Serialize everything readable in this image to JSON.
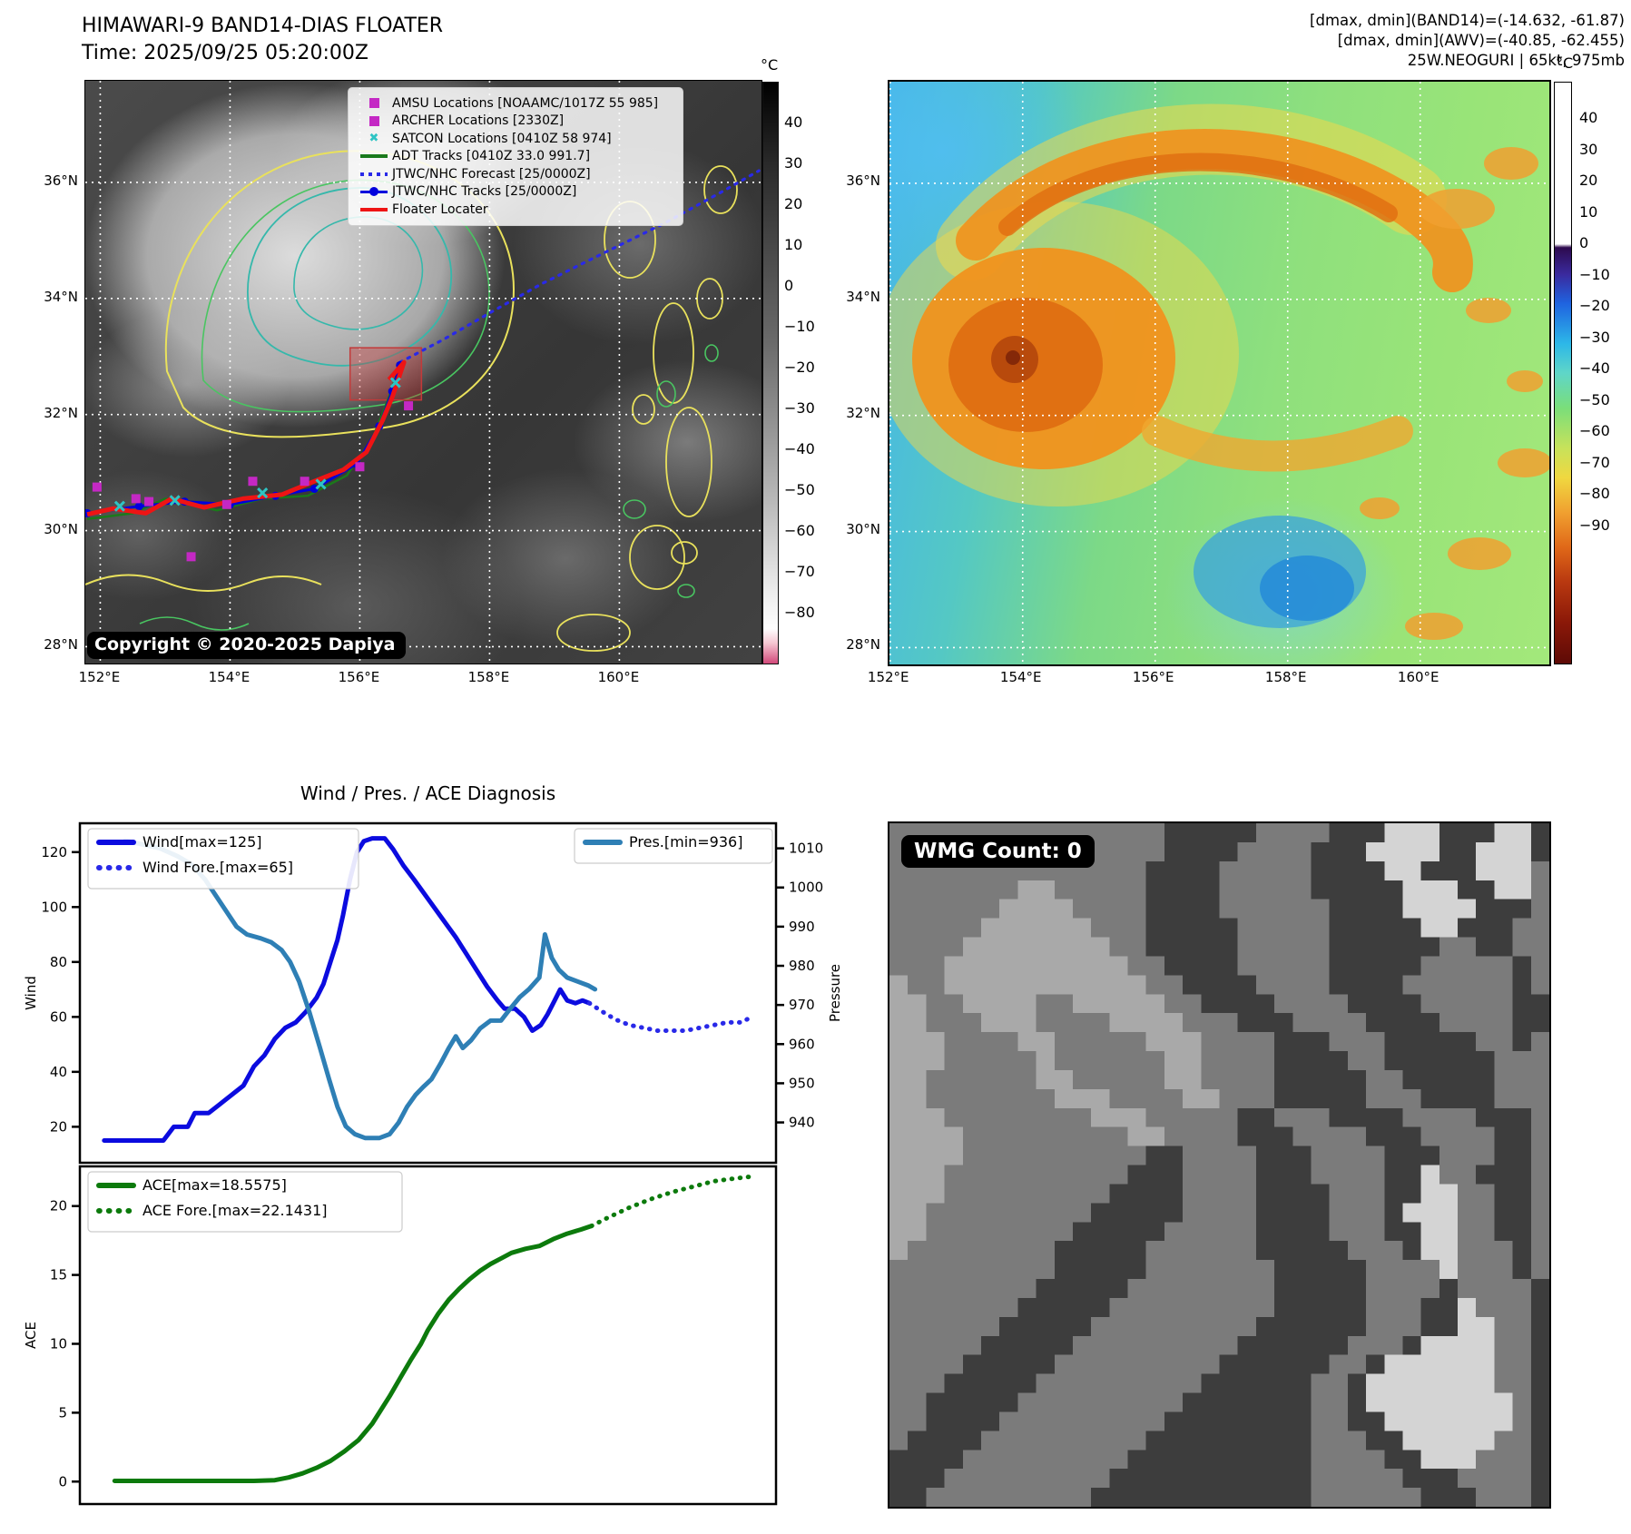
{
  "panel_band14": {
    "title": "HIMAWARI-9 BAND14-DIAS FLOATER",
    "subtitle": "Time: 2025/09/25 05:20:00Z",
    "copyright": "Copyright © 2020-2025 Dapiya",
    "legend": [
      {
        "label": "AMSU Locations [NOAAMC/1017Z 55 985]",
        "marker": "square",
        "color": "#c428c4"
      },
      {
        "label": "ARCHER Locations [2330Z]",
        "marker": "square",
        "color": "#c428c4"
      },
      {
        "label": "SATCON Locations [0410Z 58 974]",
        "marker": "x",
        "color": "#2ec4c4"
      },
      {
        "label": "ADT Tracks [0410Z 33.0 991.7]",
        "marker": "line",
        "color": "#1a7a1a"
      },
      {
        "label": "JTWC/NHC Forecast [25/0000Z]",
        "marker": "dotted",
        "color": "#2929e8"
      },
      {
        "label": "JTWC/NHC Tracks [25/0000Z]",
        "marker": "linedot",
        "color": "#0000dd"
      },
      {
        "label": "Floater Locater",
        "marker": "line",
        "color": "#ee1414"
      }
    ],
    "lat_labels": [
      "36°N",
      "34°N",
      "32°N",
      "30°N",
      "28°N"
    ],
    "lon_labels": [
      "152°E",
      "154°E",
      "156°E",
      "158°E",
      "160°E"
    ],
    "colorbar": {
      "unit": "°C",
      "ticks": [
        40,
        30,
        20,
        10,
        0,
        -10,
        -20,
        -30,
        -40,
        -50,
        -60,
        -70,
        -80
      ]
    },
    "tracks": {
      "jtwc": [
        [
          151.8,
          30.3
        ],
        [
          152.6,
          30.42
        ],
        [
          153.3,
          30.5
        ],
        [
          154.0,
          30.45
        ],
        [
          154.7,
          30.6
        ],
        [
          155.3,
          30.72
        ],
        [
          155.95,
          31.15
        ],
        [
          156.3,
          31.8
        ],
        [
          156.5,
          32.4
        ],
        [
          156.62,
          32.85
        ]
      ],
      "forecast": [
        [
          156.62,
          32.9
        ],
        [
          157.3,
          33.3
        ],
        [
          158.0,
          33.75
        ],
        [
          158.8,
          34.25
        ],
        [
          159.7,
          34.75
        ],
        [
          160.7,
          35.3
        ],
        [
          161.6,
          35.85
        ],
        [
          162.15,
          36.2
        ]
      ],
      "adt": [
        [
          151.8,
          30.2
        ],
        [
          152.5,
          30.3
        ],
        [
          153.0,
          30.55
        ],
        [
          153.8,
          30.35
        ],
        [
          154.5,
          30.55
        ],
        [
          155.2,
          30.6
        ],
        [
          155.8,
          30.95
        ],
        [
          156.2,
          31.6
        ],
        [
          156.45,
          32.3
        ],
        [
          156.6,
          32.8
        ]
      ],
      "floater": [
        [
          151.8,
          30.28
        ],
        [
          152.2,
          30.38
        ],
        [
          152.7,
          30.3
        ],
        [
          153.1,
          30.55
        ],
        [
          153.6,
          30.4
        ],
        [
          154.2,
          30.55
        ],
        [
          154.8,
          30.62
        ],
        [
          155.3,
          30.85
        ],
        [
          155.75,
          31.05
        ],
        [
          156.1,
          31.35
        ],
        [
          156.35,
          31.9
        ],
        [
          156.5,
          32.3
        ],
        [
          156.68,
          32.9
        ],
        [
          156.45,
          32.6
        ]
      ],
      "amsu": [
        [
          151.95,
          30.75
        ],
        [
          152.75,
          30.5
        ],
        [
          153.4,
          29.55
        ],
        [
          153.95,
          30.45
        ],
        [
          155.15,
          30.85
        ],
        [
          156.0,
          31.1
        ]
      ],
      "archer": [
        [
          152.55,
          30.55
        ],
        [
          154.35,
          30.85
        ],
        [
          156.75,
          32.15
        ]
      ],
      "satcon": [
        [
          152.3,
          30.42
        ],
        [
          153.15,
          30.52
        ],
        [
          154.5,
          30.65
        ],
        [
          155.4,
          30.8
        ],
        [
          156.55,
          32.55
        ]
      ],
      "floater_box": [
        155.85,
        33.15,
        156.95,
        32.25
      ]
    }
  },
  "panel_awv": {
    "header_lines": [
      "[dmax, dmin](BAND14)=(-14.632, -61.87)",
      "[dmax, dmin](AWV)=(-40.85, -62.455)",
      "25W.NEOGURI | 65kt, 975mb"
    ],
    "lat_labels": [
      "36°N",
      "34°N",
      "32°N",
      "30°N",
      "28°N"
    ],
    "lon_labels": [
      "152°E",
      "154°E",
      "156°E",
      "158°E",
      "160°E"
    ],
    "colorbar": {
      "unit": "°C",
      "ticks": [
        40,
        30,
        20,
        10,
        0,
        -10,
        -20,
        -30,
        -40,
        -50,
        -60,
        -70,
        -80,
        -90
      ]
    }
  },
  "diagnosis": {
    "title": "Wind / Pres. / ACE Diagnosis"
  },
  "wmg": {
    "badge": "WMG Count: 0",
    "palette": [
      "#3d3d3d",
      "#7b7b7b",
      "#a9a9a9",
      "#d4d4d4"
    ],
    "bitmap": [
      "111111111111111000001111000333000330",
      "111111111111111000011110003333003330",
      "111111111111110000111110000330003331",
      "111111122111110000111110000033300331",
      "111111222211110000111111000033330001",
      "111112222221110000011111000003300011",
      "111122222222110000011111000000110011",
      "111222222222211000011111000001111101",
      "211222222222221100001111000011111101",
      "221122221122222110000111100001111100",
      "221112221111222211100011110000111100",
      "222111122111112221111000111000001101",
      "222111112111111221111000011000000111",
      "221111112211111221111000001100000111",
      "221111111222111122111000001110000111",
      "222111111112221111100111000011110001",
      "222211111111122111100011110001111001",
      "222211111111110011110001111000111001",
      "222111111111100011110001111003110001",
      "222111111111000011110000111003311001",
      "221111111110000011110000111033311001",
      "221111111100000111110000111003311001",
      "211111111000001111110000011103311101",
      "111111111000001111111000001111311101",
      "111111110000011111111000001111011110",
      "111111100000111111111000001110031110",
      "111111000001111111110000001110033110",
      "111110000011111111100000011103333110",
      "111100000111111111000000110333333110",
      "111000001111111110000001103333333110",
      "110000011111111100000001103333333310",
      "110000111111111000000001100333333310",
      "100001111111110000000001110033333110",
      "000011111111100000000001111003331110",
      "000111111111000000000001111100011110",
      "001111111110000000000001111110001110"
    ]
  },
  "chart_data": [
    {
      "id": "wind_pres",
      "type": "line",
      "title": "Wind / Pres. / ACE Diagnosis (upper panel)",
      "xlabel": "",
      "ylabel": "Wind",
      "y2label": "Pressure",
      "ylim": [
        6.9,
        130.5
      ],
      "y2lim": [
        929.7,
        1016.4
      ],
      "yticks": [
        20,
        40,
        60,
        80,
        100,
        120
      ],
      "y2ticks": [
        940,
        950,
        960,
        970,
        980,
        990,
        1000,
        1010
      ],
      "grid": false,
      "legend_position": "upper left / upper right",
      "series": [
        {
          "name": "Wind[max=125]",
          "axis": "left",
          "style": "solid",
          "color": "#0b0bdf",
          "width": 5,
          "points": [
            [
              0.035,
              15
            ],
            [
              0.12,
              15
            ],
            [
              0.135,
              20
            ],
            [
              0.155,
              20
            ],
            [
              0.165,
              25
            ],
            [
              0.185,
              25
            ],
            [
              0.2,
              28
            ],
            [
              0.21,
              30
            ],
            [
              0.225,
              33
            ],
            [
              0.235,
              35
            ],
            [
              0.25,
              42
            ],
            [
              0.265,
              46
            ],
            [
              0.28,
              52
            ],
            [
              0.295,
              56
            ],
            [
              0.31,
              58
            ],
            [
              0.325,
              62
            ],
            [
              0.34,
              67
            ],
            [
              0.35,
              72
            ],
            [
              0.36,
              80
            ],
            [
              0.37,
              88
            ],
            [
              0.378,
              97
            ],
            [
              0.388,
              110
            ],
            [
              0.398,
              120
            ],
            [
              0.408,
              124
            ],
            [
              0.42,
              125
            ],
            [
              0.438,
              125
            ],
            [
              0.45,
              121
            ],
            [
              0.465,
              115
            ],
            [
              0.48,
              110
            ],
            [
              0.5,
              103
            ],
            [
              0.52,
              96
            ],
            [
              0.54,
              89
            ],
            [
              0.555,
              83
            ],
            [
              0.57,
              77
            ],
            [
              0.585,
              71
            ],
            [
              0.6,
              66
            ],
            [
              0.61,
              63
            ],
            [
              0.625,
              63
            ],
            [
              0.638,
              60
            ],
            [
              0.65,
              55
            ],
            [
              0.662,
              57
            ],
            [
              0.672,
              61
            ],
            [
              0.682,
              66
            ],
            [
              0.69,
              70
            ],
            [
              0.7,
              66
            ],
            [
              0.712,
              65
            ],
            [
              0.722,
              66
            ],
            [
              0.732,
              65
            ]
          ]
        },
        {
          "name": "Wind Fore.[max=65]",
          "axis": "left",
          "style": "dotted",
          "color": "#2929e8",
          "width": 5,
          "points": [
            [
              0.732,
              65
            ],
            [
              0.75,
              62
            ],
            [
              0.77,
              59
            ],
            [
              0.79,
              57
            ],
            [
              0.81,
              56
            ],
            [
              0.83,
              55
            ],
            [
              0.85,
              55
            ],
            [
              0.87,
              55
            ],
            [
              0.89,
              56
            ],
            [
              0.91,
              57
            ],
            [
              0.93,
              58
            ],
            [
              0.95,
              58
            ],
            [
              0.965,
              60
            ]
          ]
        },
        {
          "name": "Pres.[min=936]",
          "axis": "right",
          "style": "solid",
          "color": "#2e7fb5",
          "width": 5,
          "points": [
            [
              0.065,
              1012
            ],
            [
              0.09,
              1011
            ],
            [
              0.115,
              1010
            ],
            [
              0.14,
              1008
            ],
            [
              0.16,
              1006
            ],
            [
              0.18,
              1002
            ],
            [
              0.195,
              998
            ],
            [
              0.21,
              994
            ],
            [
              0.225,
              990
            ],
            [
              0.24,
              988
            ],
            [
              0.26,
              987
            ],
            [
              0.275,
              986
            ],
            [
              0.29,
              984
            ],
            [
              0.302,
              981
            ],
            [
              0.315,
              976
            ],
            [
              0.33,
              968
            ],
            [
              0.345,
              959
            ],
            [
              0.358,
              951
            ],
            [
              0.37,
              944
            ],
            [
              0.382,
              939
            ],
            [
              0.395,
              937
            ],
            [
              0.41,
              936
            ],
            [
              0.43,
              936
            ],
            [
              0.445,
              937
            ],
            [
              0.458,
              940
            ],
            [
              0.47,
              944
            ],
            [
              0.482,
              947
            ],
            [
              0.493,
              949
            ],
            [
              0.505,
              951
            ],
            [
              0.518,
              955
            ],
            [
              0.53,
              959
            ],
            [
              0.54,
              962
            ],
            [
              0.55,
              959
            ],
            [
              0.562,
              961
            ],
            [
              0.575,
              964
            ],
            [
              0.59,
              966
            ],
            [
              0.605,
              966
            ],
            [
              0.618,
              969
            ],
            [
              0.632,
              972
            ],
            [
              0.645,
              974
            ],
            [
              0.66,
              977
            ],
            [
              0.668,
              988
            ],
            [
              0.678,
              982
            ],
            [
              0.688,
              979
            ],
            [
              0.7,
              977
            ],
            [
              0.715,
              976
            ],
            [
              0.73,
              975
            ],
            [
              0.74,
              974
            ]
          ]
        }
      ]
    },
    {
      "id": "ace",
      "type": "line",
      "title": "Wind / Pres. / ACE Diagnosis (lower panel)",
      "xlabel": "",
      "ylabel": "ACE",
      "ylim": [
        -1.63,
        22.88
      ],
      "yticks": [
        0,
        5,
        10,
        15,
        20
      ],
      "grid": false,
      "legend_position": "upper left",
      "series": [
        {
          "name": "ACE[max=18.5575]",
          "axis": "left",
          "style": "solid",
          "color": "#0c7a0c",
          "width": 5,
          "points": [
            [
              0.05,
              0.05
            ],
            [
              0.15,
              0.05
            ],
            [
              0.25,
              0.05
            ],
            [
              0.28,
              0.1
            ],
            [
              0.3,
              0.3
            ],
            [
              0.32,
              0.6
            ],
            [
              0.34,
              1.0
            ],
            [
              0.36,
              1.5
            ],
            [
              0.38,
              2.2
            ],
            [
              0.4,
              3.0
            ],
            [
              0.41,
              3.6
            ],
            [
              0.42,
              4.2
            ],
            [
              0.43,
              5.0
            ],
            [
              0.445,
              6.2
            ],
            [
              0.46,
              7.5
            ],
            [
              0.475,
              8.8
            ],
            [
              0.49,
              10.0
            ],
            [
              0.5,
              11.0
            ],
            [
              0.515,
              12.2
            ],
            [
              0.53,
              13.2
            ],
            [
              0.545,
              14.0
            ],
            [
              0.56,
              14.7
            ],
            [
              0.575,
              15.3
            ],
            [
              0.59,
              15.8
            ],
            [
              0.605,
              16.2
            ],
            [
              0.62,
              16.6
            ],
            [
              0.64,
              16.9
            ],
            [
              0.66,
              17.1
            ],
            [
              0.68,
              17.6
            ],
            [
              0.7,
              18.0
            ],
            [
              0.72,
              18.3
            ],
            [
              0.735,
              18.56
            ]
          ]
        },
        {
          "name": "ACE Fore.[max=22.1431]",
          "axis": "left",
          "style": "dotted",
          "color": "#0c7a0c",
          "width": 5,
          "points": [
            [
              0.735,
              18.56
            ],
            [
              0.76,
              19.2
            ],
            [
              0.79,
              19.9
            ],
            [
              0.82,
              20.5
            ],
            [
              0.85,
              21.0
            ],
            [
              0.88,
              21.4
            ],
            [
              0.91,
              21.8
            ],
            [
              0.94,
              22.0
            ],
            [
              0.965,
              22.14
            ]
          ]
        }
      ]
    }
  ]
}
